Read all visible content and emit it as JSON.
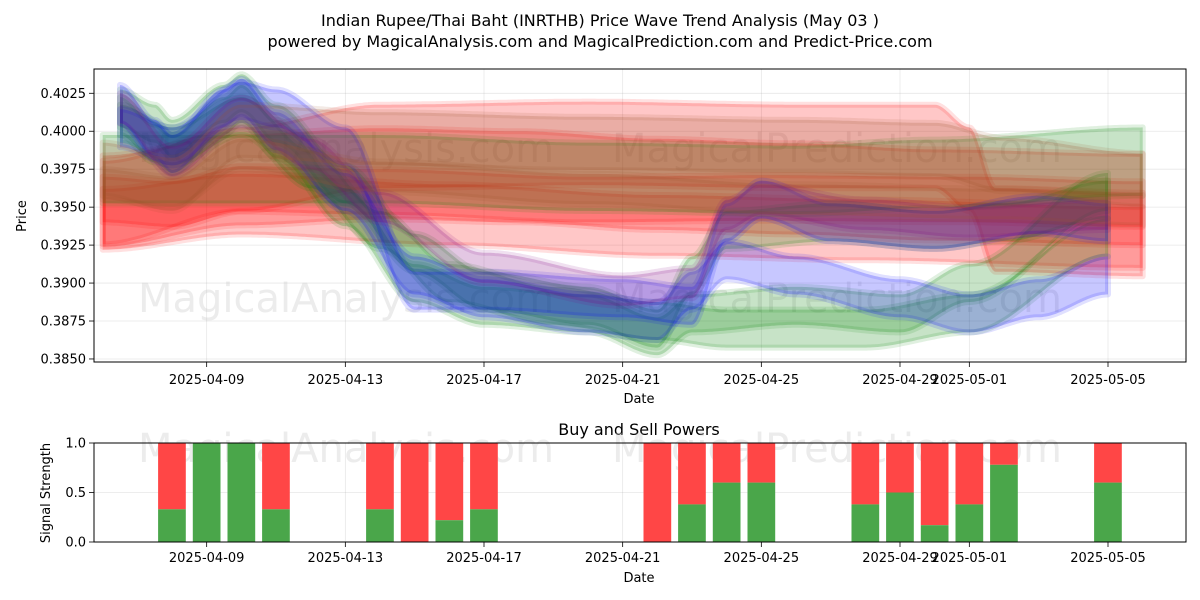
{
  "title_line1": "Indian Rupee/Thai Baht (INRTHB) Price Wave Trend Analysis (May 03 )",
  "title_line2": "powered by MagicalAnalysis.com and MagicalPrediction.com and Predict-Price.com",
  "watermarks": [
    "MagicalAnalysis.com",
    "MagicalPrediction.com"
  ],
  "chart_data": [
    {
      "type": "area",
      "xlabel": "Date",
      "ylabel": "Price",
      "ylim": [
        0.3848,
        0.4041
      ],
      "xlim": [
        "2025-04-05T18:00",
        "2025-05-07T06:00"
      ],
      "x_ticks": [
        "2025-04-09",
        "2025-04-13",
        "2025-04-17",
        "2025-04-21",
        "2025-04-25",
        "2025-04-29",
        "2025-05-01",
        "2025-05-05"
      ],
      "y_ticks": [
        "0.3850",
        "0.3875",
        "0.3900",
        "0.3925",
        "0.3950",
        "0.3975",
        "0.4000",
        "0.4025"
      ],
      "grid": true,
      "series": [
        {
          "color": "#ff0000",
          "band": 0.003,
          "points": [
            [
              "2025-04-06",
              0.3955
            ],
            [
              "2025-04-08",
              0.3952
            ],
            [
              "2025-04-10",
              0.3962
            ],
            [
              "2025-04-14",
              0.396
            ],
            [
              "2025-04-20",
              0.3955
            ],
            [
              "2025-04-25",
              0.3956
            ],
            [
              "2025-05-01",
              0.3955
            ],
            [
              "2025-05-06",
              0.3952
            ]
          ]
        },
        {
          "color": "#ff0000",
          "band": 0.006,
          "points": [
            [
              "2025-04-06",
              0.3954
            ],
            [
              "2025-04-10",
              0.3968
            ],
            [
              "2025-04-14",
              0.3972
            ],
            [
              "2025-04-18",
              0.397
            ],
            [
              "2025-04-22",
              0.3965
            ],
            [
              "2025-04-26",
              0.3962
            ],
            [
              "2025-04-30",
              0.3958
            ],
            [
              "2025-05-06",
              0.3955
            ]
          ]
        },
        {
          "color": "#ff0000",
          "band": 0.0055,
          "points": [
            [
              "2025-04-06",
              0.3953
            ],
            [
              "2025-04-10",
              0.3975
            ],
            [
              "2025-04-14",
              0.399
            ],
            [
              "2025-04-20",
              0.3992
            ],
            [
              "2025-04-26",
              0.399
            ],
            [
              "2025-04-30",
              0.399
            ],
            [
              "2025-05-01",
              0.3975
            ],
            [
              "2025-05-01T18:00",
              0.3935
            ],
            [
              "2025-05-06",
              0.3932
            ]
          ]
        },
        {
          "color": "#ff0000",
          "band": 0.004,
          "points": [
            [
              "2025-04-06",
              0.3942
            ],
            [
              "2025-04-10",
              0.3952
            ],
            [
              "2025-04-16",
              0.3945
            ],
            [
              "2025-04-22",
              0.3938
            ],
            [
              "2025-04-28",
              0.3935
            ],
            [
              "2025-05-06",
              0.393
            ]
          ]
        },
        {
          "color": "#008000",
          "band": 0.0045,
          "points": [
            [
              "2025-04-06",
              0.3975
            ],
            [
              "2025-04-14",
              0.3975
            ],
            [
              "2025-04-20",
              0.397
            ],
            [
              "2025-04-26",
              0.3968
            ],
            [
              "2025-04-30",
              0.3972
            ],
            [
              "2025-05-06",
              0.398
            ]
          ]
        },
        {
          "color": "#008000",
          "band": 0.0025,
          "points": [
            [
              "2025-04-06T12:00",
              0.4015
            ],
            [
              "2025-04-07T12:00",
              0.4005
            ],
            [
              "2025-04-08",
              0.3995
            ],
            [
              "2025-04-09T12:00",
              0.4018
            ],
            [
              "2025-04-10",
              0.4025
            ],
            [
              "2025-04-11",
              0.4005
            ],
            [
              "2025-04-13",
              0.3965
            ],
            [
              "2025-04-15",
              0.392
            ],
            [
              "2025-04-17",
              0.3895
            ],
            [
              "2025-04-20",
              0.3885
            ],
            [
              "2025-04-22",
              0.387
            ],
            [
              "2025-04-23",
              0.3905
            ],
            [
              "2025-04-24",
              0.3935
            ],
            [
              "2025-04-27",
              0.394
            ],
            [
              "2025-04-30",
              0.3935
            ],
            [
              "2025-05-02",
              0.394
            ],
            [
              "2025-05-05",
              0.3955
            ]
          ]
        },
        {
          "color": "#008000",
          "band": 0.0025,
          "points": [
            [
              "2025-04-06T12:00",
              0.401
            ],
            [
              "2025-04-07T12:00",
              0.3992
            ],
            [
              "2025-04-08",
              0.3985
            ],
            [
              "2025-04-09T12:00",
              0.401
            ],
            [
              "2025-04-10",
              0.4018
            ],
            [
              "2025-04-11",
              0.3995
            ],
            [
              "2025-04-13",
              0.395
            ],
            [
              "2025-04-15",
              0.39
            ],
            [
              "2025-04-17",
              0.3885
            ],
            [
              "2025-04-20",
              0.388
            ],
            [
              "2025-04-22",
              0.3865
            ],
            [
              "2025-04-23",
              0.388
            ],
            [
              "2025-04-26",
              0.3885
            ],
            [
              "2025-04-29",
              0.388
            ],
            [
              "2025-05-01",
              0.39
            ],
            [
              "2025-05-05",
              0.396
            ]
          ]
        },
        {
          "color": "#008000",
          "band": 0.0025,
          "points": [
            [
              "2025-04-06T12:00",
              0.4005
            ],
            [
              "2025-04-08",
              0.399
            ],
            [
              "2025-04-10",
              0.401
            ],
            [
              "2025-04-12",
              0.3975
            ],
            [
              "2025-04-14",
              0.3935
            ],
            [
              "2025-04-16",
              0.39
            ],
            [
              "2025-04-19",
              0.3885
            ],
            [
              "2025-04-22",
              0.3875
            ],
            [
              "2025-04-24",
              0.387
            ],
            [
              "2025-04-28",
              0.387
            ],
            [
              "2025-05-01",
              0.388
            ],
            [
              "2025-05-05",
              0.393
            ]
          ]
        },
        {
          "color": "#0000ff",
          "band": 0.0025,
          "points": [
            [
              "2025-04-06T12:00",
              0.4018
            ],
            [
              "2025-04-07T12:00",
              0.3995
            ],
            [
              "2025-04-08",
              0.3985
            ],
            [
              "2025-04-09T12:00",
              0.4015
            ],
            [
              "2025-04-10",
              0.4022
            ],
            [
              "2025-04-11",
              0.4
            ],
            [
              "2025-04-13",
              0.396
            ],
            [
              "2025-04-15",
              0.3905
            ],
            [
              "2025-04-17",
              0.389
            ],
            [
              "2025-04-20",
              0.388
            ],
            [
              "2025-04-22",
              0.3875
            ],
            [
              "2025-04-23",
              0.3895
            ],
            [
              "2025-04-24",
              0.3915
            ],
            [
              "2025-04-26",
              0.3905
            ],
            [
              "2025-04-29",
              0.389
            ],
            [
              "2025-05-01",
              0.388
            ],
            [
              "2025-05-03",
              0.389
            ],
            [
              "2025-05-05",
              0.3905
            ]
          ]
        },
        {
          "color": "#0000ff",
          "band": 0.0025,
          "points": [
            [
              "2025-04-06T12:00",
              0.4002
            ],
            [
              "2025-04-08",
              0.399
            ],
            [
              "2025-04-10",
              0.402
            ],
            [
              "2025-04-11",
              0.4015
            ],
            [
              "2025-04-13",
              0.399
            ],
            [
              "2025-04-15",
              0.3895
            ],
            [
              "2025-04-17",
              0.3895
            ],
            [
              "2025-04-21",
              0.389
            ],
            [
              "2025-04-23",
              0.3885
            ],
            [
              "2025-04-24",
              0.394
            ],
            [
              "2025-04-25",
              0.3955
            ],
            [
              "2025-04-27",
              0.394
            ],
            [
              "2025-04-30",
              0.3935
            ],
            [
              "2025-05-03",
              0.3945
            ],
            [
              "2025-05-05",
              0.394
            ]
          ]
        },
        {
          "color": "#800080",
          "band": 0.002,
          "points": [
            [
              "2025-04-06T12:00",
              0.4015
            ],
            [
              "2025-04-08",
              0.398
            ],
            [
              "2025-04-10",
              0.4012
            ],
            [
              "2025-04-12",
              0.3985
            ],
            [
              "2025-04-14",
              0.395
            ],
            [
              "2025-04-17",
              0.391
            ],
            [
              "2025-04-21",
              0.3895
            ],
            [
              "2025-04-23",
              0.39
            ],
            [
              "2025-04-24",
              0.3945
            ],
            [
              "2025-04-25",
              0.3955
            ],
            [
              "2025-04-28",
              0.3945
            ],
            [
              "2025-05-01",
              0.394
            ],
            [
              "2025-05-05",
              0.3945
            ]
          ]
        },
        {
          "color": "#a0522d",
          "band": 0.0035,
          "points": [
            [
              "2025-04-06",
              0.3975
            ],
            [
              "2025-04-08",
              0.3965
            ],
            [
              "2025-04-10",
              0.4
            ],
            [
              "2025-04-14",
              0.3995
            ],
            [
              "2025-04-20",
              0.3992
            ],
            [
              "2025-04-26",
              0.399
            ],
            [
              "2025-04-30",
              0.3988
            ],
            [
              "2025-05-02",
              0.3978
            ],
            [
              "2025-05-06",
              0.3968
            ]
          ]
        },
        {
          "color": "#a0522d",
          "band": 0.002,
          "points": [
            [
              "2025-04-06",
              0.3965
            ],
            [
              "2025-04-08",
              0.396
            ],
            [
              "2025-04-10",
              0.3985
            ],
            [
              "2025-04-14",
              0.397
            ],
            [
              "2025-04-20",
              0.3962
            ],
            [
              "2025-04-26",
              0.3955
            ],
            [
              "2025-05-02",
              0.3952
            ],
            [
              "2025-05-06",
              0.3948
            ]
          ]
        }
      ]
    },
    {
      "type": "bar",
      "title": "Buy and Sell Powers",
      "xlabel": "Date",
      "ylabel": "Signal Strength",
      "ylim": [
        0,
        1.0
      ],
      "y_ticks": [
        "0.0",
        "0.5",
        "1.0"
      ],
      "x_ticks": [
        "2025-04-09",
        "2025-04-13",
        "2025-04-17",
        "2025-04-21",
        "2025-04-25",
        "2025-04-29",
        "2025-05-01",
        "2025-05-05"
      ],
      "grid": true,
      "buy_color": "#4aa64a",
      "sell_color": "#ff4646",
      "dates": [
        "2025-04-08",
        "2025-04-09",
        "2025-04-10",
        "2025-04-11",
        "2025-04-14",
        "2025-04-15",
        "2025-04-16",
        "2025-04-17",
        "2025-04-22",
        "2025-04-23",
        "2025-04-24",
        "2025-04-25",
        "2025-04-28",
        "2025-04-29",
        "2025-04-30",
        "2025-05-01",
        "2025-05-02",
        "2025-05-05"
      ],
      "buy": [
        0.33,
        1.0,
        1.0,
        0.33,
        0.33,
        0.0,
        0.22,
        0.33,
        0.0,
        0.38,
        0.6,
        0.6,
        0.38,
        0.5,
        0.17,
        0.38,
        0.78,
        0.6
      ]
    }
  ]
}
